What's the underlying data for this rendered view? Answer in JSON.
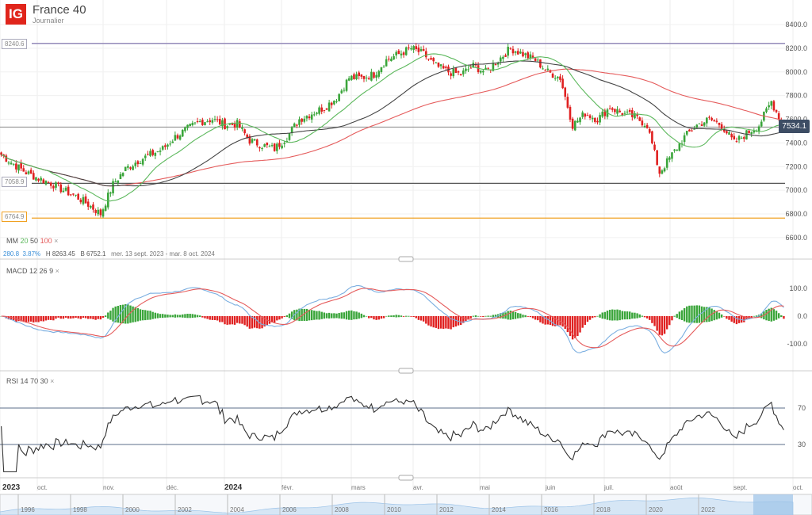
{
  "header": {
    "logo": "IG",
    "title": "France 40",
    "interval": "Journalier"
  },
  "indicators": {
    "ma": {
      "label": "MM",
      "p1": "20",
      "p2": "50",
      "p3": "100",
      "close": "×",
      "colors": [
        "#5cb85c",
        "#444444",
        "#e55b5b"
      ]
    },
    "stats": {
      "change": "280.8",
      "change_pct": "3.87%",
      "high": "H 8263.45",
      "low": "B 6752.1",
      "range": "mer. 13 sept. 2023 - mar. 8 oct. 2024"
    },
    "macd": {
      "label": "MACD",
      "p1": "12",
      "p2": "26",
      "p3": "9",
      "close": "×"
    },
    "rsi": {
      "label": "RSI",
      "p1": "14",
      "p2": "70",
      "p3": "30",
      "close": "×"
    }
  },
  "levels": [
    {
      "value": "8240.6",
      "color": "#8a7fb3"
    },
    {
      "value": "7058.9",
      "color": "#555555"
    },
    {
      "value": "6764.9",
      "color": "#f0a020"
    }
  ],
  "current_price": "7534.1",
  "chart_data": {
    "type": "candlestick",
    "y_ticks": [
      "8400.0",
      "8200.0",
      "8000.0",
      "7800.0",
      "7600.0",
      "7400.0",
      "7200.0",
      "7000.0",
      "6800.0",
      "6600.0"
    ],
    "ylim": [
      6600,
      8400
    ],
    "macd_ticks": [
      "100.0",
      "0.0",
      "-100.0"
    ],
    "rsi_ticks": [
      "70",
      "30"
    ],
    "x_ticks": [
      "2023",
      "oct.",
      "nov.",
      "déc.",
      "2024",
      "févr.",
      "mars",
      "avr.",
      "mai",
      "juin",
      "juil.",
      "août",
      "sept.",
      "oct."
    ],
    "weekly_closes": [
      7300,
      7220,
      7150,
      7100,
      7060,
      7000,
      6950,
      6880,
      6800,
      7050,
      7180,
      7250,
      7300,
      7350,
      7450,
      7520,
      7580,
      7600,
      7550,
      7560,
      7420,
      7380,
      7350,
      7450,
      7600,
      7650,
      7700,
      7780,
      7950,
      7950,
      7980,
      8100,
      8150,
      8200,
      8150,
      8050,
      8000,
      7980,
      8050,
      8000,
      8100,
      8200,
      8150,
      8100,
      8000,
      7950,
      7550,
      7650,
      7600,
      7700,
      7650,
      7620,
      7550,
      7150,
      7300,
      7450,
      7550,
      7600,
      7550,
      7400,
      7480,
      7550,
      7750,
      7534
    ],
    "navigator_years": [
      "1996",
      "1998",
      "2000",
      "2002",
      "2004",
      "2006",
      "2008",
      "2010",
      "2012",
      "2014",
      "2016",
      "2018",
      "2020",
      "2022"
    ]
  }
}
